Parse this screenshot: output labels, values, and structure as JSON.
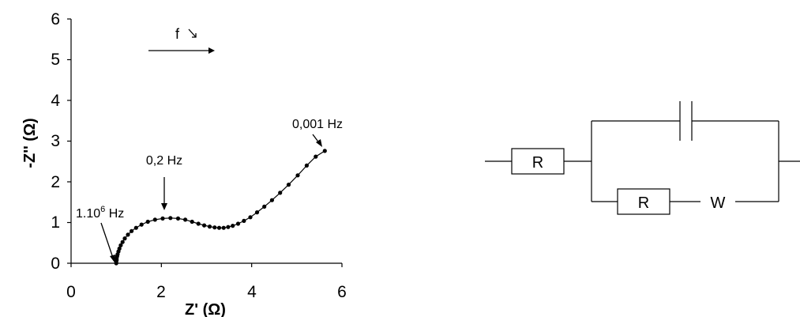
{
  "chart_data": {
    "type": "scatter",
    "title": "",
    "xlabel": "Z' (Ω)",
    "ylabel": "-Z'' (Ω)",
    "xlim": [
      0,
      6
    ],
    "ylim": [
      0,
      6
    ],
    "x_ticks": [
      "0",
      "2",
      "4",
      "6"
    ],
    "y_ticks": [
      "0",
      "1",
      "2",
      "3",
      "4",
      "5",
      "6"
    ],
    "grid": false,
    "legend": "none",
    "series": [
      {
        "points": [
          [
            1.0,
            0.0
          ],
          [
            1.0,
            0.04
          ],
          [
            1.01,
            0.08
          ],
          [
            1.01,
            0.12
          ],
          [
            1.02,
            0.17
          ],
          [
            1.03,
            0.22
          ],
          [
            1.05,
            0.29
          ],
          [
            1.07,
            0.36
          ],
          [
            1.1,
            0.44
          ],
          [
            1.14,
            0.52
          ],
          [
            1.19,
            0.61
          ],
          [
            1.26,
            0.7
          ],
          [
            1.34,
            0.79
          ],
          [
            1.44,
            0.87
          ],
          [
            1.56,
            0.95
          ],
          [
            1.7,
            1.02
          ],
          [
            1.86,
            1.07
          ],
          [
            2.03,
            1.1
          ],
          [
            2.2,
            1.11
          ],
          [
            2.37,
            1.1
          ],
          [
            2.53,
            1.07
          ],
          [
            2.68,
            1.02
          ],
          [
            2.82,
            0.97
          ],
          [
            2.95,
            0.93
          ],
          [
            3.07,
            0.9
          ],
          [
            3.18,
            0.88
          ],
          [
            3.28,
            0.87
          ],
          [
            3.38,
            0.87
          ],
          [
            3.48,
            0.89
          ],
          [
            3.58,
            0.92
          ],
          [
            3.7,
            0.97
          ],
          [
            3.83,
            1.04
          ],
          [
            3.97,
            1.13
          ],
          [
            4.12,
            1.25
          ],
          [
            4.28,
            1.39
          ],
          [
            4.45,
            1.55
          ],
          [
            4.63,
            1.73
          ],
          [
            4.82,
            1.93
          ],
          [
            5.02,
            2.16
          ],
          [
            5.22,
            2.4
          ],
          [
            5.42,
            2.62
          ],
          [
            5.62,
            2.76
          ]
        ]
      }
    ],
    "annotations": {
      "freq_high": {
        "base": "1.10",
        "sup": "6",
        "unit": " Hz"
      },
      "freq_mid": "0,2 Hz",
      "freq_low": "0,001 Hz",
      "freq_direction": "f"
    }
  },
  "circuit": {
    "resistor_1": "R",
    "resistor_2": "R",
    "warburg": "W"
  }
}
